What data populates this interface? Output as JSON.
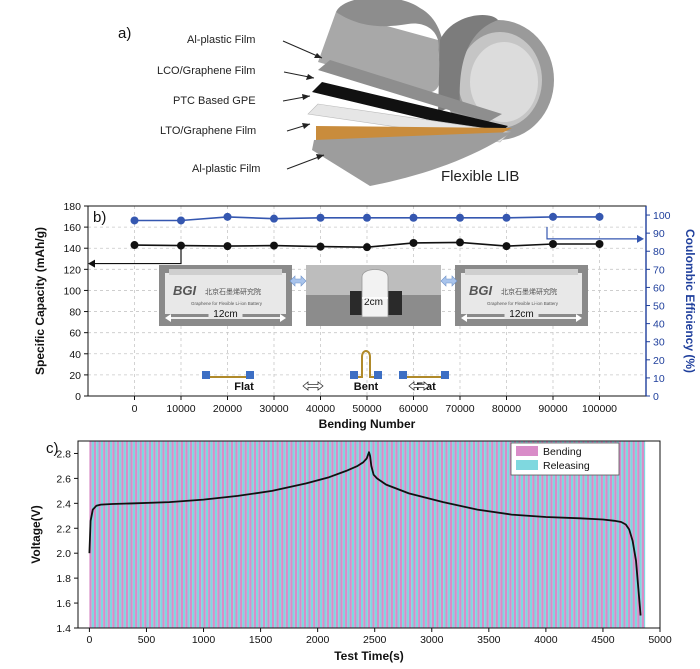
{
  "panel_a": {
    "label": "a)",
    "layers": [
      "Al-plastic Film",
      "LCO/Graphene Film",
      "PTC Based GPE",
      "LTO/Graphene Film",
      "Al-plastic Film"
    ],
    "device_label": "Flexible LIB"
  },
  "chart_data": [
    {
      "type": "line",
      "panel_label": "b)",
      "xlabel": "Bending Number",
      "ylabel": "Specific Capacity (mAh/g)",
      "y2label": "Coulombic Efficiency (%)",
      "xlim": [
        -10000,
        110000
      ],
      "ylim": [
        0,
        180
      ],
      "y2lim": [
        0,
        105
      ],
      "x_ticks": [
        0,
        10000,
        20000,
        30000,
        40000,
        50000,
        60000,
        70000,
        80000,
        90000,
        100000
      ],
      "y_ticks": [
        0,
        20,
        40,
        60,
        80,
        100,
        120,
        140,
        160,
        180
      ],
      "y2_ticks": [
        0,
        10,
        20,
        30,
        40,
        50,
        60,
        70,
        80,
        90,
        100
      ],
      "grid": true,
      "series": [
        {
          "axis": "left",
          "color": "#111111",
          "x": [
            0,
            10000,
            20000,
            30000,
            40000,
            50000,
            60000,
            70000,
            80000,
            90000,
            100000
          ],
          "y": [
            143,
            142.5,
            142,
            142.5,
            141.5,
            141,
            145,
            145.5,
            142,
            144,
            144
          ]
        },
        {
          "axis": "right",
          "color": "#3557b0",
          "x": [
            0,
            10000,
            20000,
            30000,
            40000,
            50000,
            60000,
            70000,
            80000,
            90000,
            100000
          ],
          "y": [
            97,
            97,
            99,
            98,
            98.5,
            98.5,
            98.5,
            98.5,
            98.5,
            99,
            99
          ]
        }
      ],
      "inset": {
        "photo_brand": "北京石墨烯研究院",
        "photo_logo": "BGI",
        "photo_caption": "Graphene for Flexible Li-ion Battery",
        "flat_width": "12cm",
        "bent_width": "2cm",
        "states": [
          "Flat",
          "Bent",
          "Flat"
        ]
      }
    },
    {
      "type": "line",
      "panel_label": "c)",
      "xlabel": "Test Time(s)",
      "ylabel": "Voltage(V)",
      "xlim": [
        -100,
        5000
      ],
      "ylim": [
        1.4,
        2.9
      ],
      "x_ticks": [
        0,
        500,
        1000,
        1500,
        2000,
        2500,
        3000,
        3500,
        4000,
        4500,
        5000
      ],
      "y_ticks": [
        1.4,
        1.6,
        1.8,
        2.0,
        2.2,
        2.4,
        2.6,
        2.8
      ],
      "legend": [
        "Bending",
        "Releasing"
      ],
      "legend_position": "top-right",
      "band_colors": [
        "#d98cc8",
        "#7fd8df"
      ],
      "band_range": [
        0,
        4870
      ],
      "band_cycle_s": 40,
      "series": [
        {
          "color": "#111111",
          "x": [
            0,
            10,
            30,
            60,
            100,
            200,
            400,
            700,
            1000,
            1300,
            1600,
            1900,
            2100,
            2250,
            2350,
            2400,
            2430,
            2450,
            2460,
            2470,
            2490,
            2520,
            2600,
            2800,
            3100,
            3400,
            3700,
            4000,
            4300,
            4500,
            4600,
            4660,
            4700,
            4730,
            4760,
            4790,
            4810,
            4830
          ],
          "y": [
            2.0,
            2.26,
            2.35,
            2.38,
            2.39,
            2.395,
            2.4,
            2.41,
            2.43,
            2.46,
            2.5,
            2.56,
            2.61,
            2.66,
            2.7,
            2.73,
            2.76,
            2.81,
            2.78,
            2.7,
            2.63,
            2.6,
            2.55,
            2.48,
            2.41,
            2.35,
            2.31,
            2.29,
            2.28,
            2.27,
            2.26,
            2.25,
            2.23,
            2.19,
            2.1,
            1.94,
            1.72,
            1.5
          ]
        }
      ]
    }
  ]
}
